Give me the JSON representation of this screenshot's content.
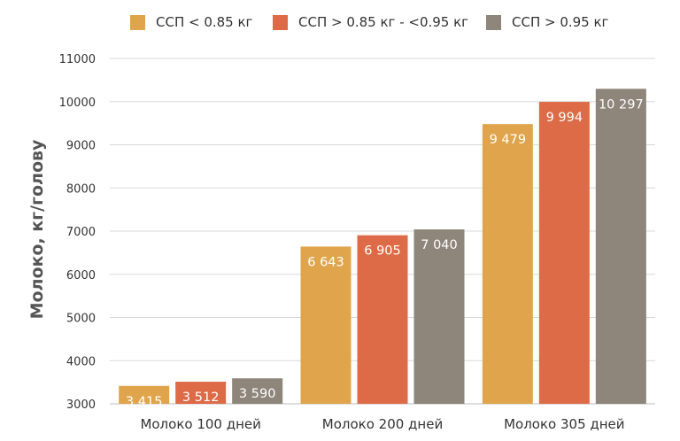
{
  "chart_data": {
    "type": "bar",
    "title": "",
    "xlabel": "",
    "ylabel": "Молоко, кг/голову",
    "categories": [
      "Молоко 100 дней",
      "Молоко 200 дней",
      "Молоко 305 дней"
    ],
    "series": [
      {
        "name": "ССП < 0.85 кг",
        "color": "#E0A54C",
        "values": [
          3415,
          6643,
          9479
        ],
        "labels": [
          "3 415",
          "6 643",
          "9 479"
        ]
      },
      {
        "name": "ССП > 0.85 кг - <0.95 кг",
        "color": "#DE6B47",
        "values": [
          3512,
          6905,
          9994
        ],
        "labels": [
          "3 512",
          "6 905",
          "9 994"
        ]
      },
      {
        "name": "ССП > 0.95 кг",
        "color": "#8E857B",
        "values": [
          3590,
          7040,
          10297
        ],
        "labels": [
          "3 590",
          "7 040",
          "10 297"
        ]
      }
    ],
    "ylim": [
      3000,
      11000
    ],
    "yticks": [
      3000,
      4000,
      5000,
      6000,
      7000,
      8000,
      9000,
      10000,
      11000
    ],
    "ytick_labels": [
      "3000",
      "4000",
      "5000",
      "6000",
      "7000",
      "8000",
      "9000",
      "10000",
      "11000"
    ],
    "grid": true,
    "legend_position": "top"
  }
}
